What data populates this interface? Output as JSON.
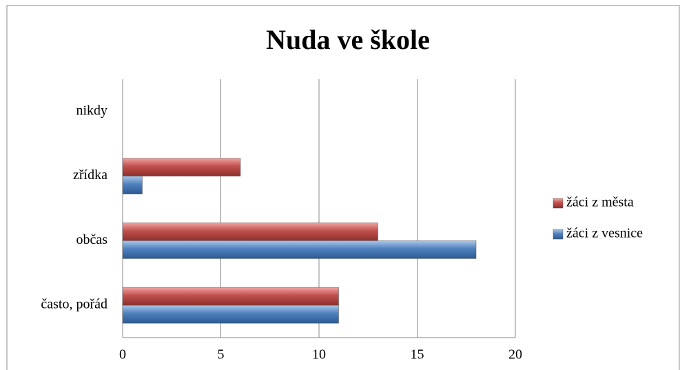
{
  "chart_data": {
    "type": "bar",
    "orientation": "horizontal",
    "title": "Nuda ve škole",
    "categories": [
      "často, pořád",
      "občas",
      "zřídka",
      "nikdy"
    ],
    "series": [
      {
        "name": "žáci z města",
        "color": "#c0504d",
        "values": [
          11,
          13,
          6,
          0
        ]
      },
      {
        "name": "žáci z vesnice",
        "color": "#4f81bd",
        "values": [
          11,
          18,
          1,
          0
        ]
      }
    ],
    "xlim": [
      0,
      20
    ],
    "xticks": [
      0,
      5,
      10,
      15,
      20
    ],
    "grid": true,
    "legend": "right"
  }
}
